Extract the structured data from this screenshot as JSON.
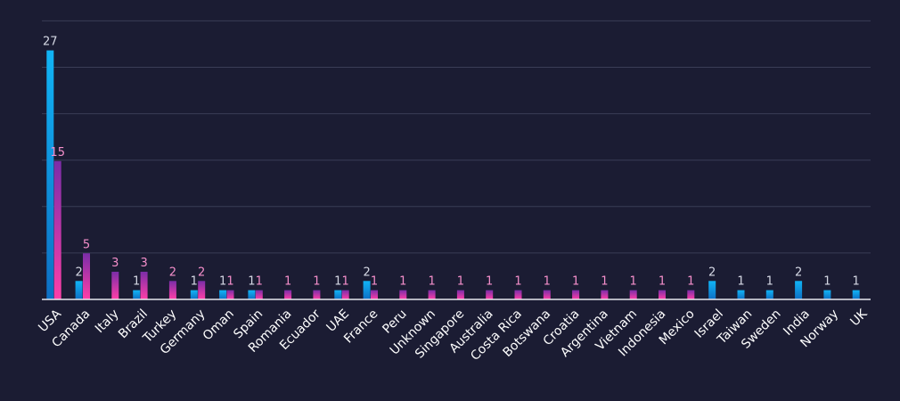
{
  "chart_data": {
    "type": "bar",
    "title": "",
    "xlabel": "",
    "ylabel": "",
    "ylim": [
      0,
      30
    ],
    "grid": true,
    "legend": "none",
    "categories": [
      "USA",
      "Canada",
      "Italy",
      "Brazil",
      "Turkey",
      "Germany",
      "Oman",
      "Spain",
      "Romania",
      "Ecuador",
      "UAE",
      "France",
      "Peru",
      "Unknown",
      "Singapore",
      "Australia",
      "Costa Rica",
      "Botswana",
      "Croatia",
      "Argentina",
      "Vietnam",
      "Indonesia",
      "Mexico",
      "Israel",
      "Taiwan",
      "Sweden",
      "India",
      "Norway",
      "UK"
    ],
    "series": [
      {
        "values": [
          27,
          2,
          null,
          1,
          null,
          1,
          1,
          1,
          null,
          null,
          1,
          2,
          null,
          null,
          null,
          null,
          null,
          null,
          null,
          null,
          null,
          null,
          null,
          2,
          1,
          1,
          2,
          1,
          1
        ]
      },
      {
        "values": [
          15,
          5,
          3,
          3,
          2,
          2,
          1,
          1,
          1,
          1,
          1,
          1,
          1,
          1,
          1,
          1,
          1,
          1,
          1,
          1,
          1,
          1,
          1,
          null,
          null,
          null,
          null,
          null,
          null
        ]
      }
    ]
  },
  "colors": {
    "background": "#1b1c33",
    "grid": "#3b3d56",
    "axis": "#e6e6ee",
    "series_a": [
      "#0d6fc4",
      "#11b4f5"
    ],
    "series_b": [
      "#ff3fa8",
      "#7b2da8"
    ],
    "label_a": "#d5d8e4",
    "label_b": "#f58fcb",
    "tick_label": "#ffffff"
  }
}
